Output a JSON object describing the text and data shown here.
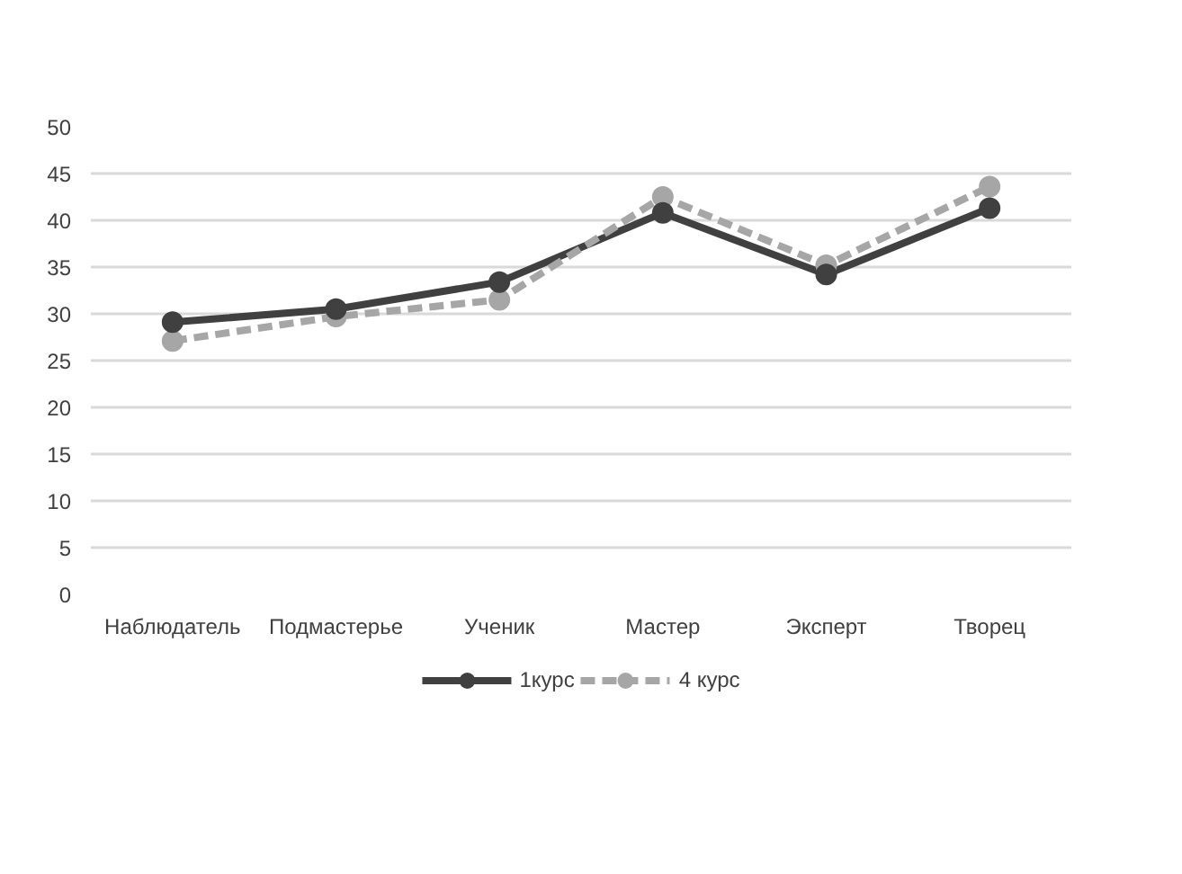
{
  "chart_data": {
    "type": "line",
    "categories": [
      "Наблюдатель",
      "Подмастерье",
      "Ученик",
      "Мастер",
      "Эксперт",
      "Творец"
    ],
    "series": [
      {
        "name": "1курс",
        "color": "#404040",
        "line_style": "solid",
        "values": [
          29.1,
          30.5,
          33.4,
          40.8,
          34.2,
          41.3
        ]
      },
      {
        "name": "4 курс",
        "color": "#a6a6a6",
        "line_style": "dashed",
        "values": [
          27.1,
          29.7,
          31.5,
          42.5,
          35.2,
          43.6
        ]
      }
    ],
    "ylim": [
      0,
      50
    ],
    "yticks": [
      0,
      5,
      10,
      15,
      20,
      25,
      30,
      35,
      40,
      45,
      50
    ],
    "grid": "y",
    "legend": "bottom",
    "marker": "circle"
  }
}
